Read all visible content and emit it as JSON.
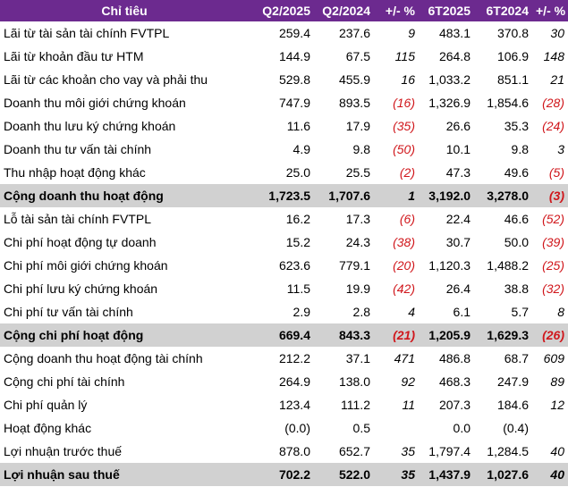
{
  "table": {
    "headers": [
      "Chỉ tiêu",
      "Q2/2025",
      "Q2/2024",
      "+/- %",
      "6T2025",
      "6T2024",
      "+/- %"
    ],
    "rows": [
      {
        "label": "Lãi từ tài sản tài chính FVTPL",
        "q2_2025": "259.4",
        "q2_2024": "237.6",
        "q_change": "9",
        "h1_2025": "483.1",
        "h1_2024": "370.8",
        "h_change": "30",
        "total": false
      },
      {
        "label": "Lãi từ khoản đầu tư HTM",
        "q2_2025": "144.9",
        "q2_2024": "67.5",
        "q_change": "115",
        "h1_2025": "264.8",
        "h1_2024": "106.9",
        "h_change": "148",
        "total": false
      },
      {
        "label": "Lãi từ các khoản cho vay và phải thu",
        "q2_2025": "529.8",
        "q2_2024": "455.9",
        "q_change": "16",
        "h1_2025": "1,033.2",
        "h1_2024": "851.1",
        "h_change": "21",
        "total": false
      },
      {
        "label": "Doanh thu môi giới chứng khoán",
        "q2_2025": "747.9",
        "q2_2024": "893.5",
        "q_change": "(16)",
        "h1_2025": "1,326.9",
        "h1_2024": "1,854.6",
        "h_change": "(28)",
        "total": false
      },
      {
        "label": "Doanh thu lưu ký chứng khoán",
        "q2_2025": "11.6",
        "q2_2024": "17.9",
        "q_change": "(35)",
        "h1_2025": "26.6",
        "h1_2024": "35.3",
        "h_change": "(24)",
        "total": false
      },
      {
        "label": "Doanh thu tư vấn tài chính",
        "q2_2025": "4.9",
        "q2_2024": "9.8",
        "q_change": "(50)",
        "h1_2025": "10.1",
        "h1_2024": "9.8",
        "h_change": "3",
        "total": false
      },
      {
        "label": "Thu nhập hoạt động khác",
        "q2_2025": "25.0",
        "q2_2024": "25.5",
        "q_change": "(2)",
        "h1_2025": "47.3",
        "h1_2024": "49.6",
        "h_change": "(5)",
        "total": false
      },
      {
        "label": "Cộng doanh thu hoạt động",
        "q2_2025": "1,723.5",
        "q2_2024": "1,707.6",
        "q_change": "1",
        "h1_2025": "3,192.0",
        "h1_2024": "3,278.0",
        "h_change": "(3)",
        "total": true
      },
      {
        "label": "Lỗ tài sản tài chính FVTPL",
        "q2_2025": "16.2",
        "q2_2024": "17.3",
        "q_change": "(6)",
        "h1_2025": "22.4",
        "h1_2024": "46.6",
        "h_change": "(52)",
        "total": false
      },
      {
        "label": "Chi phí hoạt động tự doanh",
        "q2_2025": "15.2",
        "q2_2024": "24.3",
        "q_change": "(38)",
        "h1_2025": "30.7",
        "h1_2024": "50.0",
        "h_change": "(39)",
        "total": false
      },
      {
        "label": "Chi phí môi giới chứng khoán",
        "q2_2025": "623.6",
        "q2_2024": "779.1",
        "q_change": "(20)",
        "h1_2025": "1,120.3",
        "h1_2024": "1,488.2",
        "h_change": "(25)",
        "total": false
      },
      {
        "label": "Chi phí lưu ký chứng khoán",
        "q2_2025": "11.5",
        "q2_2024": "19.9",
        "q_change": "(42)",
        "h1_2025": "26.4",
        "h1_2024": "38.8",
        "h_change": "(32)",
        "total": false
      },
      {
        "label": "Chi phí tư vấn tài chính",
        "q2_2025": "2.9",
        "q2_2024": "2.8",
        "q_change": "4",
        "h1_2025": "6.1",
        "h1_2024": "5.7",
        "h_change": "8",
        "total": false
      },
      {
        "label": "Cộng chi phí hoạt động",
        "q2_2025": "669.4",
        "q2_2024": "843.3",
        "q_change": "(21)",
        "h1_2025": "1,205.9",
        "h1_2024": "1,629.3",
        "h_change": "(26)",
        "total": true
      },
      {
        "label": "Cộng doanh thu hoạt động tài chính",
        "q2_2025": "212.2",
        "q2_2024": "37.1",
        "q_change": "471",
        "h1_2025": "486.8",
        "h1_2024": "68.7",
        "h_change": "609",
        "total": false
      },
      {
        "label": "Cộng chi phí tài chính",
        "q2_2025": "264.9",
        "q2_2024": "138.0",
        "q_change": "92",
        "h1_2025": "468.3",
        "h1_2024": "247.9",
        "h_change": "89",
        "total": false
      },
      {
        "label": "Chi phí quản lý",
        "q2_2025": "123.4",
        "q2_2024": "111.2",
        "q_change": "11",
        "h1_2025": "207.3",
        "h1_2024": "184.6",
        "h_change": "12",
        "total": false
      },
      {
        "label": "Hoạt động khác",
        "q2_2025": "(0.0)",
        "q2_2024": "0.5",
        "q_change": "",
        "h1_2025": "0.0",
        "h1_2024": "(0.4)",
        "h_change": "",
        "total": false
      },
      {
        "label": "Lợi nhuận trước thuế",
        "q2_2025": "878.0",
        "q2_2024": "652.7",
        "q_change": "35",
        "h1_2025": "1,797.4",
        "h1_2024": "1,284.5",
        "h_change": "40",
        "total": false
      },
      {
        "label": "Lợi nhuận sau thuế",
        "q2_2025": "702.2",
        "q2_2024": "522.0",
        "q_change": "35",
        "h1_2025": "1,437.9",
        "h1_2024": "1,027.6",
        "h_change": "40",
        "total": true
      }
    ]
  },
  "colors": {
    "header_bg": "#6c2a8f",
    "header_text": "#ffffff",
    "total_row_bg": "#d1d1d1",
    "negative_text": "#d0161b"
  }
}
